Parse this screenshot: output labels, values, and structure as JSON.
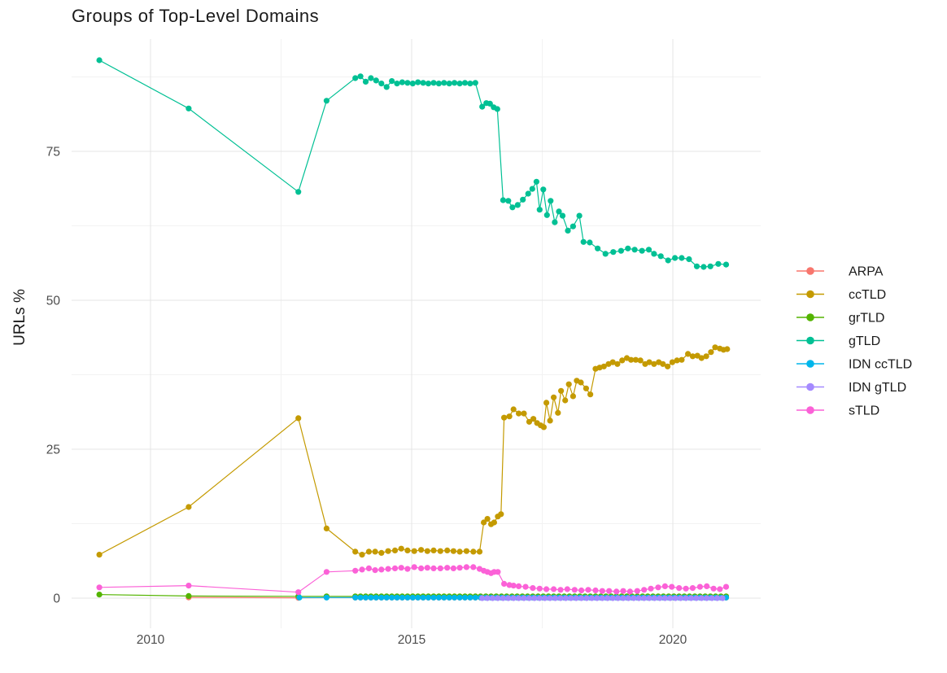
{
  "title": "Groups of Top-Level Domains",
  "axes": {
    "y_label": "URLs %",
    "y_ticks": [
      0,
      25,
      50,
      75
    ],
    "x_ticks": [
      2010,
      2015,
      2020
    ],
    "tick_color": "#4d4d4d",
    "grid_major_color": "#e4e4e4",
    "grid_minor_color": "#f2f2f2"
  },
  "chart_data": {
    "type": "line",
    "title": "Groups of Top-Level Domains",
    "xlabel": "",
    "ylabel": "URLs %",
    "xlim": [
      2008.5,
      2021.7
    ],
    "ylim": [
      -5,
      94
    ],
    "x_ticks": [
      2010,
      2015,
      2020
    ],
    "y_ticks": [
      0,
      25,
      50,
      75
    ],
    "grid": true,
    "legend_position": "right",
    "series": [
      {
        "name": "ARPA",
        "color": "#F8766D",
        "points": [
          [
            2010.73,
            0.12
          ],
          [
            2012.83,
            0.05
          ]
        ],
        "flat": {
          "from": 2013.92,
          "to": 2021.02,
          "step": 0.1,
          "value": 0.1
        }
      },
      {
        "name": "ccTLD",
        "color": "#C49A00",
        "points": [
          [
            2009.02,
            7.3
          ],
          [
            2010.73,
            15.3
          ],
          [
            2012.83,
            30.2
          ],
          [
            2013.37,
            11.7
          ],
          [
            2013.92,
            7.8
          ],
          [
            2014.05,
            7.3
          ],
          [
            2014.18,
            7.8
          ],
          [
            2014.3,
            7.8
          ],
          [
            2014.42,
            7.6
          ],
          [
            2014.55,
            7.9
          ],
          [
            2014.68,
            8.0
          ],
          [
            2014.8,
            8.3
          ],
          [
            2014.92,
            8.0
          ],
          [
            2015.05,
            7.9
          ],
          [
            2015.18,
            8.1
          ],
          [
            2015.3,
            7.9
          ],
          [
            2015.42,
            8.0
          ],
          [
            2015.55,
            7.9
          ],
          [
            2015.68,
            8.0
          ],
          [
            2015.8,
            7.9
          ],
          [
            2015.92,
            7.8
          ],
          [
            2016.05,
            7.9
          ],
          [
            2016.18,
            7.8
          ],
          [
            2016.3,
            7.8
          ],
          [
            2016.38,
            12.7
          ],
          [
            2016.45,
            13.3
          ],
          [
            2016.52,
            12.4
          ],
          [
            2016.58,
            12.7
          ],
          [
            2016.65,
            13.7
          ],
          [
            2016.71,
            14.1
          ],
          [
            2016.77,
            30.3
          ],
          [
            2016.87,
            30.5
          ],
          [
            2016.95,
            31.7
          ],
          [
            2017.05,
            31.0
          ],
          [
            2017.15,
            31.0
          ],
          [
            2017.25,
            29.6
          ],
          [
            2017.33,
            30.1
          ],
          [
            2017.4,
            29.4
          ],
          [
            2017.47,
            29.0
          ],
          [
            2017.53,
            28.7
          ],
          [
            2017.58,
            32.8
          ],
          [
            2017.65,
            29.8
          ],
          [
            2017.72,
            33.7
          ],
          [
            2017.8,
            31.1
          ],
          [
            2017.86,
            34.8
          ],
          [
            2017.94,
            33.2
          ],
          [
            2018.01,
            35.9
          ],
          [
            2018.09,
            33.9
          ],
          [
            2018.16,
            36.5
          ],
          [
            2018.24,
            36.2
          ],
          [
            2018.34,
            35.2
          ],
          [
            2018.42,
            34.2
          ],
          [
            2018.52,
            38.5
          ],
          [
            2018.6,
            38.7
          ],
          [
            2018.68,
            38.9
          ],
          [
            2018.77,
            39.3
          ],
          [
            2018.85,
            39.6
          ],
          [
            2018.94,
            39.3
          ],
          [
            2019.03,
            39.9
          ],
          [
            2019.12,
            40.3
          ],
          [
            2019.2,
            40.0
          ],
          [
            2019.29,
            40.0
          ],
          [
            2019.38,
            39.9
          ],
          [
            2019.47,
            39.3
          ],
          [
            2019.55,
            39.6
          ],
          [
            2019.64,
            39.3
          ],
          [
            2019.73,
            39.6
          ],
          [
            2019.81,
            39.3
          ],
          [
            2019.9,
            38.9
          ],
          [
            2019.99,
            39.6
          ],
          [
            2020.08,
            39.9
          ],
          [
            2020.17,
            40.0
          ],
          [
            2020.29,
            41.0
          ],
          [
            2020.38,
            40.6
          ],
          [
            2020.47,
            40.7
          ],
          [
            2020.55,
            40.3
          ],
          [
            2020.64,
            40.6
          ],
          [
            2020.73,
            41.3
          ],
          [
            2020.81,
            42.1
          ],
          [
            2020.9,
            41.9
          ],
          [
            2020.97,
            41.7
          ],
          [
            2021.04,
            41.8
          ]
        ]
      },
      {
        "name": "grTLD",
        "color": "#53B400",
        "points": [
          [
            2009.02,
            0.6
          ],
          [
            2010.73,
            0.35
          ],
          [
            2012.83,
            0.3
          ],
          [
            2013.37,
            0.3
          ]
        ],
        "flat": {
          "from": 2013.92,
          "to": 2021.02,
          "step": 0.1,
          "value": 0.3
        }
      },
      {
        "name": "gTLD",
        "color": "#00C094",
        "points": [
          [
            2009.02,
            90.3
          ],
          [
            2010.73,
            82.2
          ],
          [
            2012.83,
            68.2
          ],
          [
            2013.37,
            83.5
          ],
          [
            2013.92,
            87.3
          ],
          [
            2014.02,
            87.6
          ],
          [
            2014.12,
            86.7
          ],
          [
            2014.22,
            87.3
          ],
          [
            2014.32,
            86.9
          ],
          [
            2014.42,
            86.4
          ],
          [
            2014.52,
            85.8
          ],
          [
            2014.62,
            86.8
          ],
          [
            2014.72,
            86.4
          ],
          [
            2014.82,
            86.6
          ],
          [
            2014.92,
            86.5
          ],
          [
            2015.02,
            86.4
          ],
          [
            2015.12,
            86.6
          ],
          [
            2015.22,
            86.5
          ],
          [
            2015.32,
            86.4
          ],
          [
            2015.42,
            86.5
          ],
          [
            2015.52,
            86.4
          ],
          [
            2015.62,
            86.5
          ],
          [
            2015.72,
            86.4
          ],
          [
            2015.82,
            86.5
          ],
          [
            2015.92,
            86.4
          ],
          [
            2016.02,
            86.5
          ],
          [
            2016.12,
            86.4
          ],
          [
            2016.22,
            86.5
          ],
          [
            2016.35,
            82.5
          ],
          [
            2016.43,
            83.1
          ],
          [
            2016.5,
            83.0
          ],
          [
            2016.57,
            82.4
          ],
          [
            2016.64,
            82.1
          ],
          [
            2016.75,
            66.8
          ],
          [
            2016.85,
            66.7
          ],
          [
            2016.93,
            65.6
          ],
          [
            2017.03,
            66.0
          ],
          [
            2017.13,
            66.9
          ],
          [
            2017.23,
            67.9
          ],
          [
            2017.31,
            68.7
          ],
          [
            2017.39,
            69.9
          ],
          [
            2017.45,
            65.2
          ],
          [
            2017.52,
            68.6
          ],
          [
            2017.59,
            64.3
          ],
          [
            2017.66,
            66.7
          ],
          [
            2017.74,
            63.1
          ],
          [
            2017.82,
            64.9
          ],
          [
            2017.89,
            64.2
          ],
          [
            2017.99,
            61.7
          ],
          [
            2018.09,
            62.4
          ],
          [
            2018.21,
            64.2
          ],
          [
            2018.29,
            59.8
          ],
          [
            2018.41,
            59.7
          ],
          [
            2018.56,
            58.7
          ],
          [
            2018.71,
            57.8
          ],
          [
            2018.86,
            58.1
          ],
          [
            2019.01,
            58.3
          ],
          [
            2019.14,
            58.7
          ],
          [
            2019.27,
            58.5
          ],
          [
            2019.41,
            58.3
          ],
          [
            2019.54,
            58.5
          ],
          [
            2019.64,
            57.8
          ],
          [
            2019.77,
            57.4
          ],
          [
            2019.91,
            56.7
          ],
          [
            2020.04,
            57.1
          ],
          [
            2020.17,
            57.1
          ],
          [
            2020.31,
            56.9
          ],
          [
            2020.46,
            55.7
          ],
          [
            2020.59,
            55.6
          ],
          [
            2020.72,
            55.7
          ],
          [
            2020.87,
            56.1
          ],
          [
            2021.02,
            56.0
          ]
        ]
      },
      {
        "name": "IDN ccTLD",
        "color": "#00B6EB",
        "points": [
          [
            2012.85,
            0.1
          ],
          [
            2013.37,
            0.1
          ]
        ],
        "flat": {
          "from": 2013.92,
          "to": 2021.02,
          "step": 0.1,
          "value": 0.1
        }
      },
      {
        "name": "IDN gTLD",
        "color": "#A58AFF",
        "points": [],
        "flat": {
          "from": 2016.35,
          "to": 2021.02,
          "step": 0.1,
          "value": 0.0
        }
      },
      {
        "name": "sTLD",
        "color": "#FB61D7",
        "points": [
          [
            2009.02,
            1.8
          ],
          [
            2010.73,
            2.1
          ],
          [
            2012.83,
            1.0
          ],
          [
            2013.37,
            4.4
          ],
          [
            2013.92,
            4.6
          ],
          [
            2014.05,
            4.8
          ],
          [
            2014.18,
            5.0
          ],
          [
            2014.3,
            4.7
          ],
          [
            2014.42,
            4.8
          ],
          [
            2014.55,
            4.9
          ],
          [
            2014.68,
            5.0
          ],
          [
            2014.8,
            5.1
          ],
          [
            2014.92,
            4.9
          ],
          [
            2015.05,
            5.2
          ],
          [
            2015.18,
            5.0
          ],
          [
            2015.3,
            5.1
          ],
          [
            2015.42,
            5.0
          ],
          [
            2015.55,
            5.0
          ],
          [
            2015.68,
            5.1
          ],
          [
            2015.8,
            5.0
          ],
          [
            2015.92,
            5.1
          ],
          [
            2016.05,
            5.2
          ],
          [
            2016.18,
            5.2
          ],
          [
            2016.3,
            4.9
          ],
          [
            2016.38,
            4.6
          ],
          [
            2016.45,
            4.4
          ],
          [
            2016.52,
            4.2
          ],
          [
            2016.58,
            4.4
          ],
          [
            2016.65,
            4.4
          ],
          [
            2016.77,
            2.4
          ],
          [
            2016.87,
            2.2
          ],
          [
            2016.95,
            2.1
          ],
          [
            2017.05,
            2.0
          ],
          [
            2017.18,
            1.9
          ],
          [
            2017.32,
            1.7
          ],
          [
            2017.45,
            1.6
          ],
          [
            2017.58,
            1.5
          ],
          [
            2017.72,
            1.5
          ],
          [
            2017.85,
            1.4
          ],
          [
            2017.98,
            1.5
          ],
          [
            2018.12,
            1.4
          ],
          [
            2018.25,
            1.3
          ],
          [
            2018.38,
            1.4
          ],
          [
            2018.52,
            1.3
          ],
          [
            2018.65,
            1.2
          ],
          [
            2018.78,
            1.2
          ],
          [
            2018.92,
            1.1
          ],
          [
            2019.05,
            1.2
          ],
          [
            2019.18,
            1.1
          ],
          [
            2019.32,
            1.2
          ],
          [
            2019.45,
            1.4
          ],
          [
            2019.58,
            1.6
          ],
          [
            2019.72,
            1.8
          ],
          [
            2019.85,
            2.0
          ],
          [
            2019.98,
            1.9
          ],
          [
            2020.12,
            1.7
          ],
          [
            2020.25,
            1.6
          ],
          [
            2020.38,
            1.7
          ],
          [
            2020.52,
            1.9
          ],
          [
            2020.65,
            2.0
          ],
          [
            2020.78,
            1.6
          ],
          [
            2020.9,
            1.5
          ],
          [
            2021.02,
            1.9
          ]
        ]
      }
    ]
  },
  "legend": {
    "items": [
      {
        "label": "ARPA",
        "color": "#F8766D"
      },
      {
        "label": "ccTLD",
        "color": "#C49A00"
      },
      {
        "label": "grTLD",
        "color": "#53B400"
      },
      {
        "label": "gTLD",
        "color": "#00C094"
      },
      {
        "label": "IDN ccTLD",
        "color": "#00B6EB"
      },
      {
        "label": "IDN gTLD",
        "color": "#A58AFF"
      },
      {
        "label": "sTLD",
        "color": "#FB61D7"
      }
    ]
  }
}
